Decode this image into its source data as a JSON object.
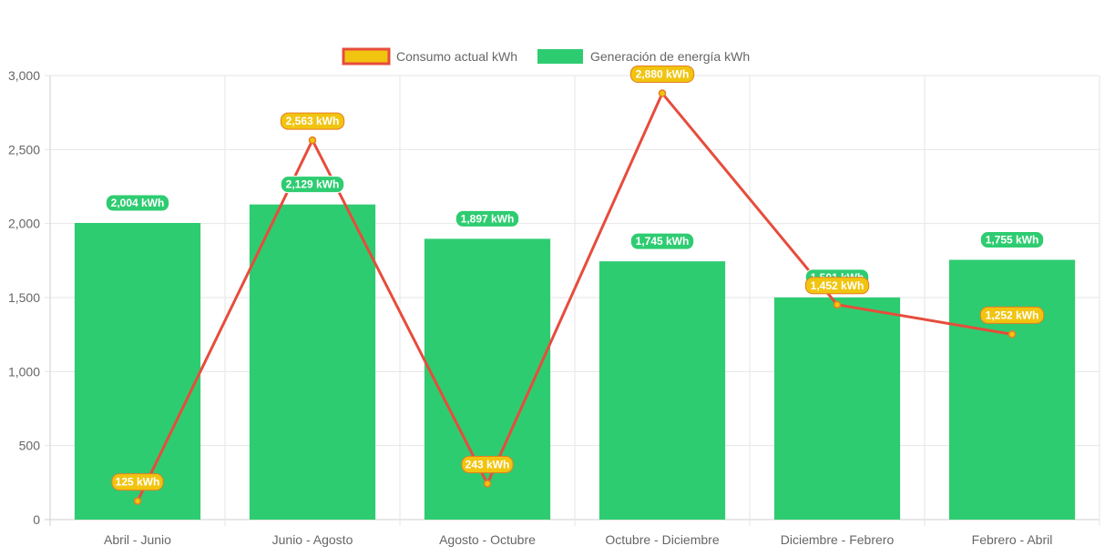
{
  "chart_data": {
    "type": "bar",
    "categories": [
      "Abril - Junio",
      "Junio - Agosto",
      "Agosto - Octubre",
      "Octubre - Diciembre",
      "Diciembre - Febrero",
      "Febrero - Abril"
    ],
    "series": [
      {
        "name": "Generación de energía kWh",
        "type": "bar",
        "values": [
          2004,
          2129,
          1897,
          1745,
          1501,
          1755
        ],
        "labels": [
          "2,004 kWh",
          "2,129 kWh",
          "1,897 kWh",
          "1,745 kWh",
          "1,501 kWh",
          "1,755 kWh"
        ],
        "color": "#2ecc71"
      },
      {
        "name": "Consumo actual kWh",
        "type": "line",
        "values": [
          125,
          2563,
          243,
          2880,
          1452,
          1252
        ],
        "labels": [
          "125 kWh",
          "2,563 kWh",
          "243 kWh",
          "2,880 kWh",
          "1,452 kWh",
          "1,252 kWh"
        ],
        "color": "#e74c3c",
        "fill": "#f1c40f"
      }
    ],
    "ylim": [
      0,
      3000
    ],
    "yticks": [
      0,
      500,
      1000,
      1500,
      2000,
      2500,
      3000
    ],
    "ytick_labels": [
      "0",
      "500",
      "1,000",
      "1,500",
      "2,000",
      "2,500",
      "3,000"
    ],
    "legend_position": "top-center",
    "grid": true
  }
}
